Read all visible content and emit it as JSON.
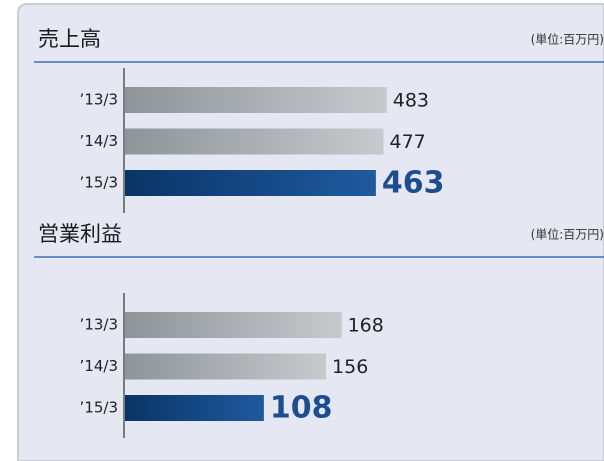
{
  "chart_data": [
    {
      "type": "bar",
      "orientation": "horizontal",
      "title": "売上高",
      "subtitle": "(単位:百万円)",
      "categories": [
        "’13/3",
        "’14/3",
        "’15/3"
      ],
      "values": [
        483,
        477,
        463
      ],
      "colors": [
        "#a9adb1",
        "#a9adb1",
        "#0b3a73"
      ],
      "xlim": [
        0,
        500
      ]
    },
    {
      "type": "bar",
      "orientation": "horizontal",
      "title": "営業利益",
      "subtitle": "(単位:百万円)",
      "categories": [
        "’13/3",
        "’14/3",
        "’15/3"
      ],
      "values": [
        168,
        156,
        108
      ],
      "colors": [
        "#a9adb1",
        "#a9adb1",
        "#0b3a73"
      ],
      "xlim": [
        0,
        210
      ]
    }
  ]
}
